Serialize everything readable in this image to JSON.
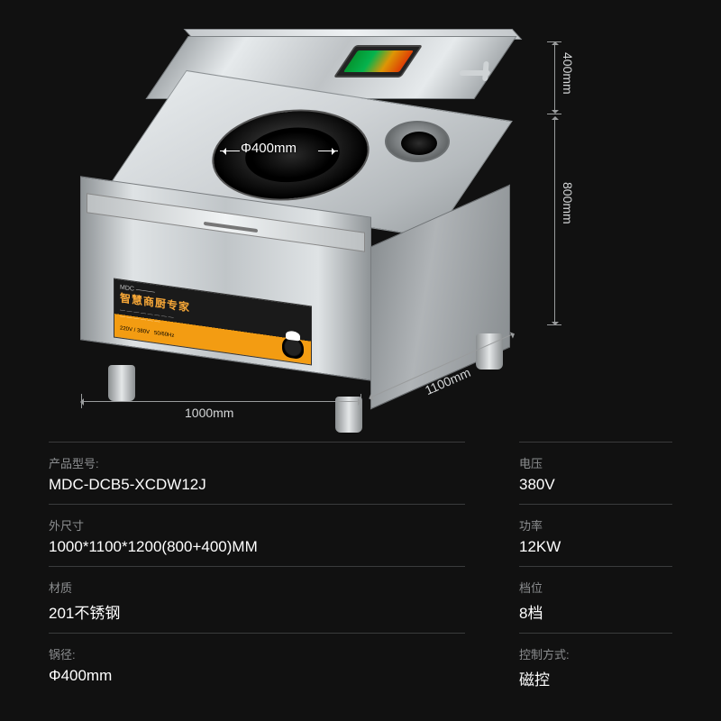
{
  "diagram": {
    "burner_diameter_label": "Φ400mm",
    "width_label": "1000mm",
    "depth_label": "1100mm",
    "upper_height_label": "400mm",
    "lower_height_label": "800mm",
    "label_plate_title": "智慧商厨专家",
    "label_plate_sub": "MDC",
    "colors": {
      "background": "#111111",
      "steel_light": "#e6eaec",
      "steel_mid": "#bfc3c6",
      "steel_dark": "#8a8f92",
      "accent_orange": "#f39c12",
      "dim_line": "#9a9c9d",
      "dim_text": "#d5d7d8",
      "spec_label": "#8c8e90",
      "spec_value": "#ffffff",
      "divider": "#3a3b3c"
    }
  },
  "specs": [
    {
      "label": "产品型号:",
      "value": "MDC-DCB5-XCDW12J"
    },
    {
      "label": "电压",
      "value": "380V"
    },
    {
      "label": "外尺寸",
      "value": "1000*1100*1200(800+400)MM"
    },
    {
      "label": "功率",
      "value": "12KW"
    },
    {
      "label": "材质",
      "value": "201不锈钢"
    },
    {
      "label": "档位",
      "value": "8档"
    },
    {
      "label": "锅径:",
      "value": "Φ400mm"
    },
    {
      "label": "控制方式:",
      "value": "磁控"
    }
  ]
}
